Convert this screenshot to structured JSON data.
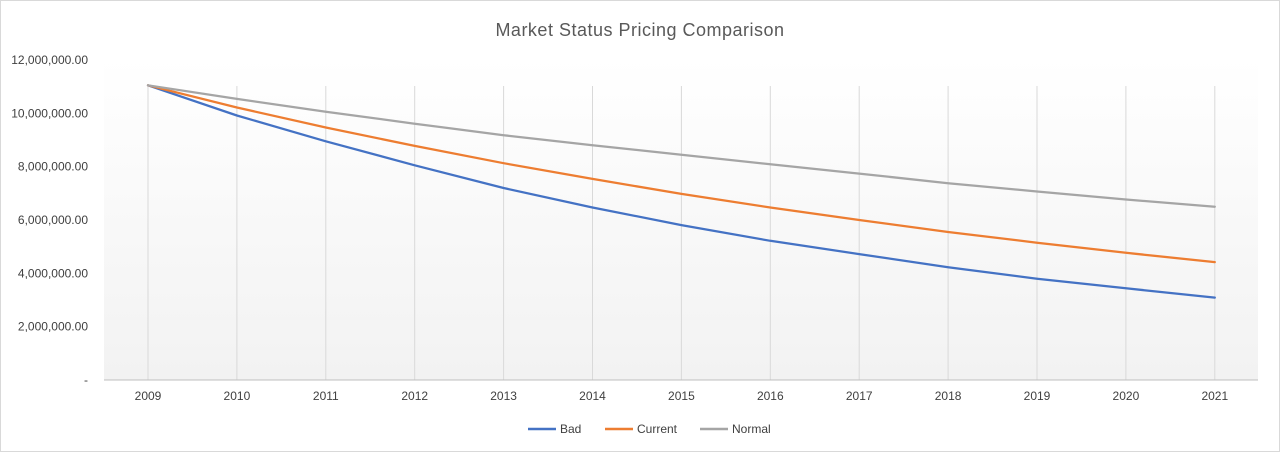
{
  "chart_data": {
    "type": "line",
    "title": "Market Status Pricing Comparison",
    "xlabel": "",
    "ylabel": "",
    "x": [
      "2009",
      "2010",
      "2011",
      "2012",
      "2013",
      "2014",
      "2015",
      "2016",
      "2017",
      "2018",
      "2019",
      "2020",
      "2021"
    ],
    "ylim": [
      0,
      12000000
    ],
    "yticks": [
      0,
      2000000,
      4000000,
      6000000,
      8000000,
      10000000,
      12000000
    ],
    "ytick_labels": [
      "-",
      "2,000,000.00",
      "4,000,000.00",
      "6,000,000.00",
      "8,000,000.00",
      "10,000,000.00",
      "12,000,000.00"
    ],
    "grid": "vertical",
    "legend": "bottom",
    "series": [
      {
        "name": "Bad",
        "color": "#4472C4",
        "values": [
          11050000,
          9920000,
          8950000,
          8050000,
          7200000,
          6470000,
          5810000,
          5220000,
          4720000,
          4230000,
          3800000,
          3440000,
          3090000
        ]
      },
      {
        "name": "Current",
        "color": "#ED7D31",
        "values": [
          11050000,
          10220000,
          9470000,
          8780000,
          8130000,
          7540000,
          6980000,
          6470000,
          6000000,
          5550000,
          5150000,
          4770000,
          4420000
        ]
      },
      {
        "name": "Normal",
        "color": "#A5A5A5",
        "values": [
          11050000,
          10540000,
          10060000,
          9610000,
          9180000,
          8800000,
          8450000,
          8090000,
          7740000,
          7380000,
          7070000,
          6770000,
          6500000
        ]
      }
    ]
  }
}
